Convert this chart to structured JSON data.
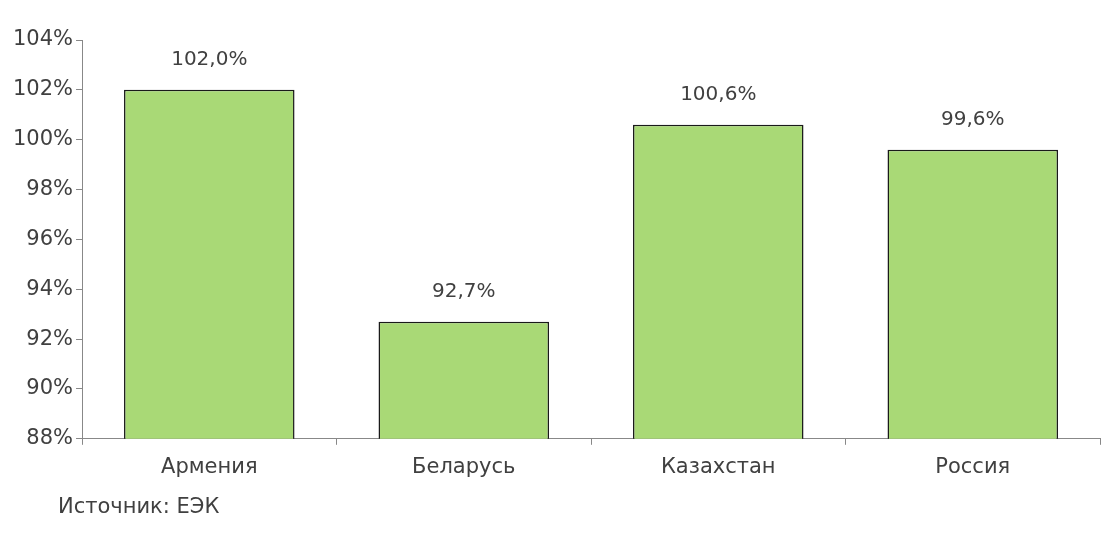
{
  "chart_data": {
    "type": "bar",
    "categories": [
      "Армения",
      "Беларусь",
      "Казахстан",
      "Россия"
    ],
    "values": [
      102.0,
      92.7,
      100.6,
      99.6
    ],
    "value_labels": [
      "102,0%",
      "92,7%",
      "100,6%",
      "99,6%"
    ],
    "color": "#a9d976",
    "ylim": [
      88,
      104
    ],
    "yticks": [
      {
        "value": 88,
        "label": "88%"
      },
      {
        "value": 90,
        "label": "90%"
      },
      {
        "value": 92,
        "label": "92%"
      },
      {
        "value": 94,
        "label": "94%"
      },
      {
        "value": 96,
        "label": "96%"
      },
      {
        "value": 98,
        "label": "98%"
      },
      {
        "value": 100,
        "label": "100%"
      },
      {
        "value": 102,
        "label": "102%"
      },
      {
        "value": 104,
        "label": "104%"
      }
    ],
    "grid": false,
    "annotations": [
      "Источник: ЕЭК"
    ]
  }
}
